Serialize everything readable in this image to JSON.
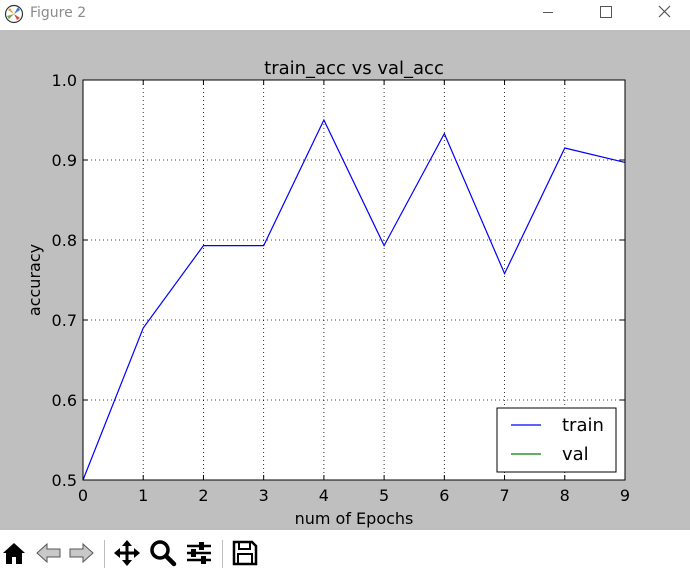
{
  "window": {
    "title": "Figure 2",
    "app_icon": "matplotlib-icon"
  },
  "window_controls": [
    {
      "name": "minimize-button",
      "icon": "minimize-icon"
    },
    {
      "name": "maximize-button",
      "icon": "maximize-icon"
    },
    {
      "name": "close-button",
      "icon": "close-icon"
    }
  ],
  "toolbar": {
    "buttons": [
      {
        "name": "home-button",
        "icon": "home-icon"
      },
      {
        "name": "back-button",
        "icon": "back-arrow-icon"
      },
      {
        "name": "forward-button",
        "icon": "forward-arrow-icon"
      },
      {
        "name": "pan-button",
        "icon": "move-icon"
      },
      {
        "name": "zoom-button",
        "icon": "zoom-icon"
      },
      {
        "name": "configure-subplots-button",
        "icon": "sliders-icon"
      },
      {
        "name": "save-button",
        "icon": "save-icon"
      }
    ]
  },
  "colors": {
    "figure_bg": "#bfbfbf",
    "axes_bg": "#ffffff",
    "train": "#0000ff",
    "val": "#008000"
  },
  "chart_data": {
    "type": "line",
    "title": "train_acc vs val_acc",
    "xlabel": "num of Epochs",
    "ylabel": "accuracy",
    "xlim": [
      0,
      9
    ],
    "ylim": [
      0.5,
      1.0
    ],
    "xticks": [
      "0",
      "1",
      "2",
      "3",
      "4",
      "5",
      "6",
      "7",
      "8",
      "9"
    ],
    "yticks": [
      "0.5",
      "0.6",
      "0.7",
      "0.8",
      "0.9",
      "1.0"
    ],
    "grid": true,
    "legend_position": "lower-right",
    "series": [
      {
        "name": "train",
        "color": "#0000ff",
        "x": [
          0,
          1,
          2,
          3,
          4,
          5,
          6,
          7,
          8,
          9
        ],
        "y": [
          0.5,
          0.69,
          0.793,
          0.793,
          0.95,
          0.793,
          0.933,
          0.758,
          0.915,
          0.897
        ]
      },
      {
        "name": "val",
        "color": "#008000",
        "x": [],
        "y": []
      }
    ]
  }
}
